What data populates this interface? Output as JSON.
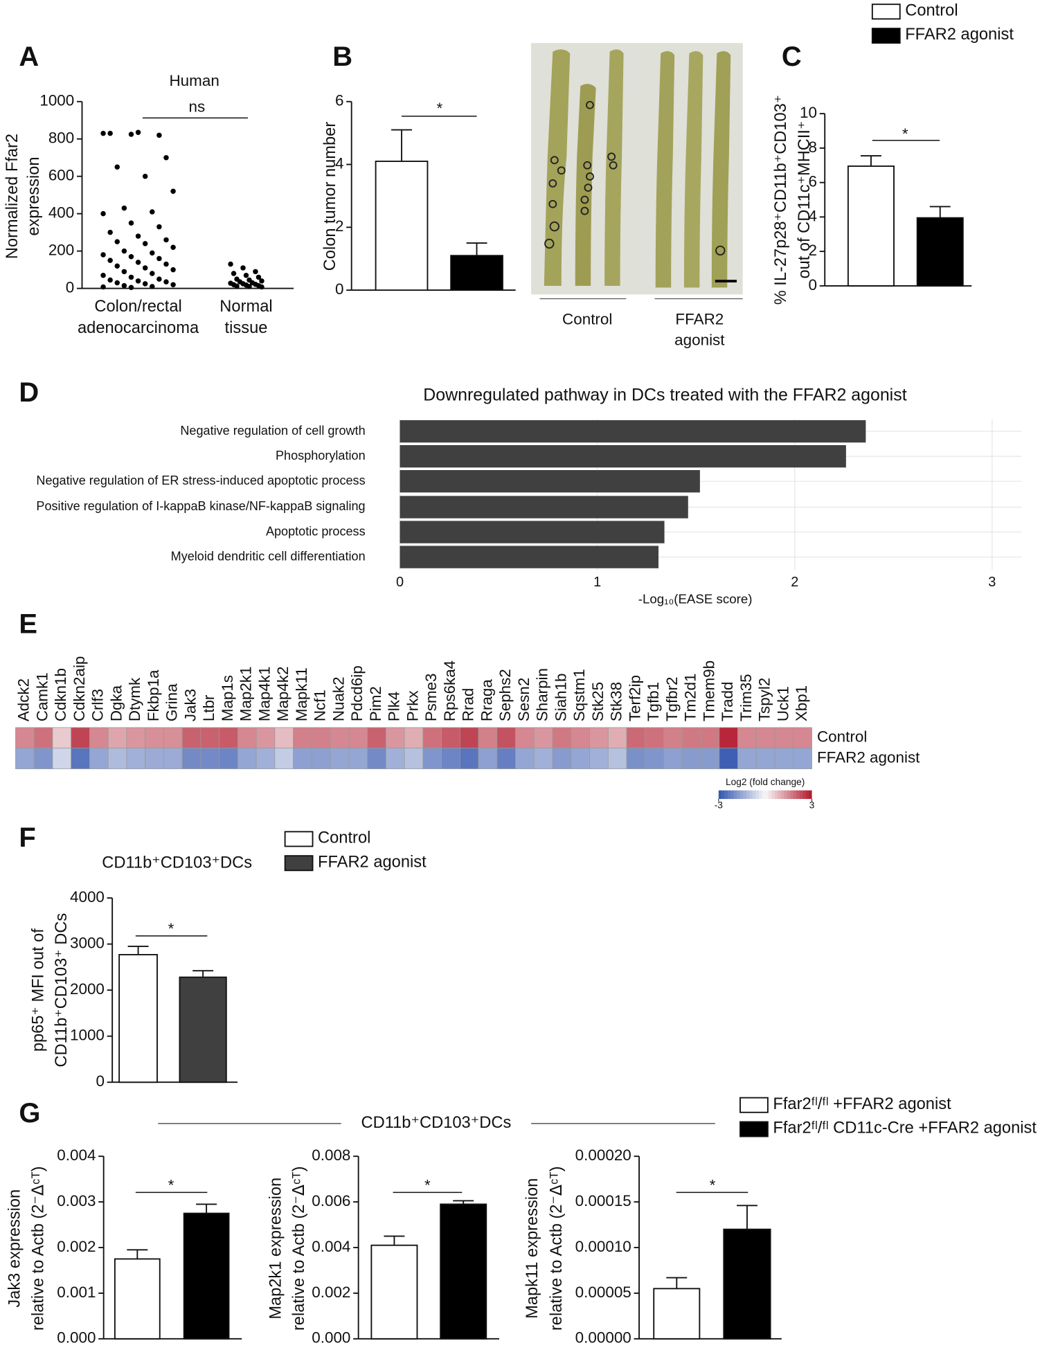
{
  "panel_labels": [
    "A",
    "B",
    "C",
    "D",
    "E",
    "F",
    "G"
  ],
  "photo": {
    "labels": [
      "Control",
      "FFAR2 agonist"
    ]
  },
  "chart_data": [
    {
      "type": "strip",
      "title": "Human",
      "annotation": "ns",
      "ylabel": [
        "Normalized Ffar2",
        "expression"
      ],
      "categories": [
        "Colon/rectal adenocarcinoma",
        "Normal tissue"
      ],
      "color": "#000000",
      "ylim": [
        0,
        1000
      ],
      "yticks": [
        0,
        200,
        400,
        600,
        800,
        1000
      ],
      "series": [
        {
          "values": [
            830,
            825,
            820,
            830,
            835,
            700,
            650,
            600,
            520,
            430,
            410,
            400,
            350,
            330,
            300,
            280,
            260,
            250,
            240,
            220,
            200,
            190,
            180,
            170,
            160,
            150,
            140,
            130,
            120,
            110,
            100,
            90,
            80,
            70,
            60,
            50,
            45,
            40,
            35,
            30,
            25,
            20,
            15,
            10,
            8,
            5
          ]
        },
        {
          "values": [
            130,
            110,
            90,
            80,
            70,
            60,
            50,
            45,
            40,
            35,
            30,
            28,
            25,
            22,
            20,
            18,
            15,
            12,
            10,
            8
          ]
        }
      ]
    },
    {
      "type": "bar",
      "ylabel": [
        "Colon tumor number"
      ],
      "annotation": "*",
      "ylim": [
        0,
        6
      ],
      "yticks": [
        0,
        2,
        4,
        6
      ],
      "series": [
        {
          "color": "#ffffff",
          "values": [
            4.1
          ],
          "errors": [
            1.0
          ]
        },
        {
          "color": "#000000",
          "values": [
            1.1
          ],
          "errors": [
            0.4
          ]
        }
      ]
    },
    {
      "type": "bar",
      "ylabel": [
        "% IL-27p28⁺CD11b⁺CD103⁺",
        "out of CD11c⁺MHCII⁺"
      ],
      "annotation": "*",
      "ylim": [
        0,
        10
      ],
      "yticks": [
        0,
        2,
        4,
        6,
        8,
        10
      ],
      "series": [
        {
          "name": "Control",
          "color": "#ffffff",
          "values": [
            6.95
          ],
          "errors": [
            0.6
          ]
        },
        {
          "name": "FFAR2 agonist",
          "color": "#000000",
          "values": [
            3.95
          ],
          "errors": [
            0.65
          ]
        }
      ]
    },
    {
      "type": "hbar",
      "title": "Downregulated pathway in DCs treated with the FFAR2 agonist",
      "xlabel": "-Log₁₀(EASE score)",
      "categories": [
        "Negative regulation of cell growth",
        "Phosphorylation",
        "Negative regulation of ER stress-induced apoptotic process",
        "Positive regulation of I-kappaB kinase/NF-kappaB signaling",
        "Apoptotic process",
        "Myeloid dendritic cell differentiation"
      ],
      "values": [
        2.36,
        2.26,
        1.52,
        1.46,
        1.34,
        1.31
      ],
      "color": "#404040",
      "xlim": [
        0,
        3.15
      ],
      "xticks": [
        0,
        1,
        2,
        3
      ],
      "grid": true
    },
    {
      "type": "heatmap",
      "legend_title": "Log2 (fold change)",
      "clim": [
        -3,
        3
      ],
      "cticks": [
        -3,
        3
      ],
      "x": [
        "Adck2",
        "Camk1",
        "Cdkn1b",
        "Cdkn2aip",
        "Crlf3",
        "Dgka",
        "Dtymk",
        "Fkbp1a",
        "Grina",
        "Jak3",
        "Ltbr",
        "Map1s",
        "Map2k1",
        "Map4k1",
        "Map4k2",
        "Mapk11",
        "Ncf1",
        "Nuak2",
        "Pdcd6ip",
        "Pim2",
        "Plk4",
        "Prkx",
        "Psme3",
        "Rps6ka4",
        "Rrad",
        "Rraga",
        "Sephs2",
        "Sesn2",
        "Sharpin",
        "Siah1b",
        "Sqstm1",
        "Stk25",
        "Stk38",
        "Terf2ip",
        "Tgfb1",
        "Tgfbr2",
        "Tm2d1",
        "Tmem9b",
        "Tradd",
        "Trim35",
        "Tspyl2",
        "Uck1",
        "Xbp1"
      ],
      "y": [
        "Control",
        "FFAR2 agonist"
      ],
      "values": [
        [
          1.5,
          1.8,
          0.6,
          2.4,
          1.5,
          1.1,
          1.3,
          1.4,
          1.4,
          2.0,
          2.0,
          2.1,
          1.5,
          1.3,
          0.8,
          1.6,
          1.6,
          1.5,
          1.5,
          2.0,
          1.3,
          1.0,
          1.8,
          2.1,
          2.4,
          1.6,
          2.2,
          1.5,
          1.3,
          1.7,
          1.5,
          1.3,
          1.0,
          1.9,
          1.8,
          1.6,
          1.7,
          1.7,
          2.8,
          1.5,
          1.5,
          1.5,
          1.5
        ],
        [
          -1.5,
          -1.8,
          -0.6,
          -2.4,
          -1.5,
          -1.1,
          -1.3,
          -1.4,
          -1.4,
          -2.0,
          -2.0,
          -2.1,
          -1.5,
          -1.3,
          -0.8,
          -1.6,
          -1.6,
          -1.5,
          -1.5,
          -2.0,
          -1.3,
          -1.0,
          -1.8,
          -2.1,
          -2.4,
          -1.6,
          -2.2,
          -1.5,
          -1.3,
          -1.7,
          -1.5,
          -1.3,
          -1.0,
          -1.9,
          -1.8,
          -1.6,
          -1.7,
          -1.7,
          -2.8,
          -1.5,
          -1.5,
          -1.5,
          -1.5
        ]
      ]
    },
    {
      "type": "bar",
      "title": "CD11b⁺CD103⁺DCs",
      "ylabel": [
        "pp65⁺ MFI out of",
        "CD11b⁺CD103⁺ DCs"
      ],
      "annotation": "*",
      "ylim": [
        0,
        4000
      ],
      "yticks": [
        0,
        1000,
        2000,
        3000,
        4000
      ],
      "series": [
        {
          "name": "Control",
          "color": "#ffffff",
          "values": [
            2770
          ],
          "errors": [
            180
          ]
        },
        {
          "name": "FFAR2 agonist",
          "color": "#404040",
          "values": [
            2280
          ],
          "errors": [
            140
          ]
        }
      ]
    },
    {
      "type": "bar",
      "title": "CD11b⁺CD103⁺DCs",
      "ylabel": [
        "Jak3 expression",
        "relative to Actb (2⁻ᐃᶜᵀ)"
      ],
      "annotation": "*",
      "ylim": [
        0,
        0.004
      ],
      "yticks": [
        {
          "value": 0,
          "label": "0.000"
        },
        {
          "value": 0.001,
          "label": "0.001"
        },
        {
          "value": 0.002,
          "label": "0.002"
        },
        {
          "value": 0.003,
          "label": "0.003"
        },
        {
          "value": 0.004,
          "label": "0.004"
        }
      ],
      "series": [
        {
          "name": "Ffar2ᶠˡ/ᶠˡ +FFAR2 agonist",
          "color": "#ffffff",
          "values": [
            0.00175
          ],
          "errors": [
            0.0002
          ]
        },
        {
          "name": "Ffar2ᶠˡ/ᶠˡ CD11c-Cre +FFAR2 agonist",
          "color": "#000000",
          "values": [
            0.00275
          ],
          "errors": [
            0.0002
          ]
        }
      ]
    },
    {
      "type": "bar",
      "ylabel": [
        "Map2k1 expression",
        "relative to Actb (2⁻ᐃᶜᵀ)"
      ],
      "annotation": "*",
      "ylim": [
        0,
        0.008
      ],
      "yticks": [
        {
          "value": 0,
          "label": "0.000"
        },
        {
          "value": 0.002,
          "label": "0.002"
        },
        {
          "value": 0.004,
          "label": "0.004"
        },
        {
          "value": 0.006,
          "label": "0.006"
        },
        {
          "value": 0.008,
          "label": "0.008"
        }
      ],
      "series": [
        {
          "color": "#ffffff",
          "values": [
            0.0041
          ],
          "errors": [
            0.0004
          ]
        },
        {
          "color": "#000000",
          "values": [
            0.0059
          ],
          "errors": [
            0.00015
          ]
        }
      ]
    },
    {
      "type": "bar",
      "ylabel": [
        "Mapk11 expression",
        "relative to Actb (2⁻ᐃᶜᵀ)"
      ],
      "annotation": "*",
      "ylim": [
        0,
        0.0002
      ],
      "yticks": [
        {
          "value": 0,
          "label": "0.00000"
        },
        {
          "value": 5e-05,
          "label": "0.00005"
        },
        {
          "value": 0.0001,
          "label": "0.00010"
        },
        {
          "value": 0.00015,
          "label": "0.00015"
        },
        {
          "value": 0.0002,
          "label": "0.00020"
        }
      ],
      "series": [
        {
          "color": "#ffffff",
          "values": [
            5.5e-05
          ],
          "errors": [
            1.2e-05
          ]
        },
        {
          "color": "#000000",
          "values": [
            0.00012
          ],
          "errors": [
            2.6e-05
          ]
        }
      ]
    }
  ]
}
